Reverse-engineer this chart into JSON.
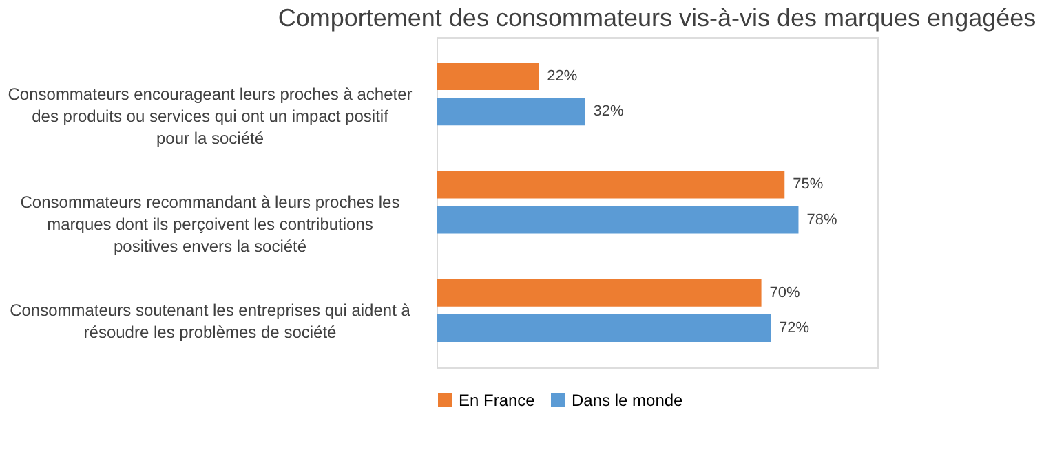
{
  "chart_data": {
    "type": "bar",
    "orientation": "horizontal",
    "title": "Comportement des consommateurs vis-à-vis des marques engagées",
    "categories": [
      "Consommateurs encourageant leurs proches à acheter des produits ou services qui ont un impact positif pour la société",
      "Consommateurs recommandant à leurs proches les marques dont ils perçoivent les contributions positives envers la société",
      "Consommateurs soutenant les entreprises qui aident à résoudre les problèmes de société"
    ],
    "series": [
      {
        "name": "En France",
        "color": "#ed7d31",
        "values": [
          22,
          75,
          70
        ],
        "value_labels": [
          "22%",
          "75%",
          "70%"
        ]
      },
      {
        "name": "Dans le monde",
        "color": "#5b9bd5",
        "values": [
          32,
          78,
          72
        ],
        "value_labels": [
          "32%",
          "78%",
          "72%"
        ]
      }
    ],
    "legend": "bottom",
    "grid": false
  }
}
